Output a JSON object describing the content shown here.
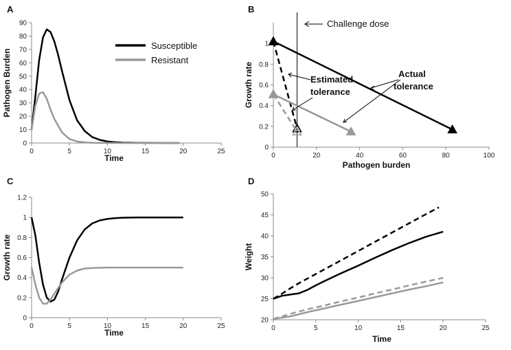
{
  "colors": {
    "susceptible": "#000000",
    "resistant": "#999999",
    "axis": "#888888"
  },
  "chart_data": [
    {
      "panel": "A",
      "type": "line",
      "title": "",
      "xlabel": "Time",
      "ylabel": "Pathogen Burden",
      "xlim": [
        0,
        25
      ],
      "ylim": [
        0,
        90
      ],
      "xticks": [
        0,
        5,
        10,
        15,
        20,
        25
      ],
      "yticks": [
        0,
        10,
        20,
        30,
        40,
        50,
        60,
        70,
        80,
        90
      ],
      "legend": [
        "Susceptible",
        "Resistant"
      ],
      "series": [
        {
          "name": "Susceptible",
          "style": "solid-black",
          "x": [
            0,
            0.5,
            1,
            1.5,
            2,
            2.5,
            3,
            3.5,
            4,
            5,
            6,
            7,
            8,
            9,
            10,
            11,
            12,
            14,
            16,
            19.5
          ],
          "y": [
            10,
            35,
            62,
            79,
            85,
            83,
            76,
            66,
            54,
            32,
            17,
            9,
            4.5,
            2.3,
            1.2,
            0.6,
            0.3,
            0.1,
            0.05,
            0
          ]
        },
        {
          "name": "Resistant",
          "style": "solid-grey",
          "x": [
            0,
            0.5,
            1,
            1.5,
            2,
            2.5,
            3,
            4,
            5,
            6,
            7,
            8,
            10,
            12,
            19.5
          ],
          "y": [
            10,
            28,
            37,
            38,
            33,
            25,
            18,
            8,
            3,
            1.2,
            0.5,
            0.2,
            0.05,
            0,
            0
          ]
        }
      ]
    },
    {
      "panel": "B",
      "type": "line",
      "title": "",
      "xlabel": "Pathogen burden",
      "ylabel": "Growth rate",
      "xlim": [
        0,
        100
      ],
      "ylim": [
        0,
        1.2
      ],
      "xticks": [
        0,
        20,
        40,
        60,
        80,
        100
      ],
      "yticks": [
        0,
        0.2,
        0.4,
        0.6,
        0.8,
        1
      ],
      "vline": {
        "x": 11,
        "label": "Challenge dose"
      },
      "annotations": [
        {
          "text_lines": [
            "Estimated",
            "tolerance"
          ]
        },
        {
          "text_lines": [
            "Actual",
            "tolerance"
          ]
        }
      ],
      "series": [
        {
          "name": "Susceptible actual tolerance",
          "style": "solid-black",
          "x": [
            0,
            83
          ],
          "y": [
            1.02,
            0.17
          ]
        },
        {
          "name": "Susceptible estimated tolerance",
          "style": "dashed-black",
          "x": [
            0,
            11
          ],
          "y": [
            1.02,
            0.18
          ]
        },
        {
          "name": "Resistant actual tolerance",
          "style": "solid-grey",
          "x": [
            0,
            36
          ],
          "y": [
            0.51,
            0.15
          ]
        },
        {
          "name": "Resistant estimated tolerance",
          "style": "dashed-grey",
          "x": [
            0,
            11
          ],
          "y": [
            0.51,
            0.15
          ]
        }
      ]
    },
    {
      "panel": "C",
      "type": "line",
      "title": "",
      "xlabel": "Time",
      "ylabel": "Growth rate",
      "xlim": [
        0,
        25
      ],
      "ylim": [
        0,
        1.2
      ],
      "xticks": [
        0,
        5,
        10,
        15,
        20,
        25
      ],
      "yticks": [
        0,
        0.2,
        0.4,
        0.6,
        0.8,
        1,
        1.2
      ],
      "series": [
        {
          "name": "Susceptible",
          "style": "solid-black",
          "x": [
            0,
            0.5,
            1,
            1.5,
            2,
            2.5,
            3,
            3.5,
            4,
            5,
            6,
            7,
            8,
            9,
            10,
            11,
            12,
            14,
            16,
            20
          ],
          "y": [
            1,
            0.82,
            0.55,
            0.33,
            0.2,
            0.16,
            0.18,
            0.26,
            0.38,
            0.6,
            0.77,
            0.88,
            0.94,
            0.97,
            0.985,
            0.993,
            0.997,
            1,
            1,
            1
          ]
        },
        {
          "name": "Resistant",
          "style": "solid-grey",
          "x": [
            0,
            0.5,
            1,
            1.5,
            2,
            2.5,
            3,
            4,
            5,
            6,
            7,
            8,
            9,
            10,
            12,
            14,
            20
          ],
          "y": [
            0.5,
            0.33,
            0.2,
            0.14,
            0.14,
            0.18,
            0.24,
            0.35,
            0.43,
            0.47,
            0.49,
            0.495,
            0.498,
            0.5,
            0.5,
            0.5,
            0.5
          ]
        }
      ]
    },
    {
      "panel": "D",
      "type": "line",
      "title": "",
      "xlabel": "Time",
      "ylabel": "Weight",
      "xlim": [
        0,
        25
      ],
      "ylim": [
        20,
        50
      ],
      "xticks": [
        0,
        5,
        10,
        15,
        20,
        25
      ],
      "yticks": [
        20,
        25,
        30,
        35,
        40,
        45,
        50
      ],
      "series": [
        {
          "name": "Susceptible estimated",
          "style": "dashed-black",
          "x": [
            0,
            1,
            2,
            3,
            4,
            5,
            8,
            10,
            12,
            15,
            18,
            19.5
          ],
          "y": [
            25,
            26.2,
            27.5,
            28.7,
            29.8,
            30.9,
            34.2,
            36.4,
            38.6,
            41.9,
            45.2,
            46.8
          ]
        },
        {
          "name": "Susceptible actual",
          "style": "solid-black",
          "x": [
            0,
            1,
            2,
            3,
            4,
            5,
            6,
            8,
            10,
            12,
            14,
            16,
            18,
            20
          ],
          "y": [
            25,
            25.7,
            26,
            26.3,
            27.1,
            28.2,
            29.2,
            31.1,
            32.9,
            34.8,
            36.6,
            38.3,
            39.8,
            41
          ]
        },
        {
          "name": "Resistant estimated",
          "style": "dashed-grey",
          "x": [
            0,
            2,
            4,
            6,
            8,
            10,
            12,
            14,
            16,
            18,
            20
          ],
          "y": [
            20.2,
            21.4,
            22.5,
            23.4,
            24.4,
            25.3,
            26.3,
            27.2,
            28.2,
            29.1,
            30
          ]
        },
        {
          "name": "Resistant actual",
          "style": "solid-grey",
          "x": [
            0,
            2,
            4,
            6,
            8,
            10,
            12,
            14,
            16,
            18,
            20
          ],
          "y": [
            20.2,
            20.8,
            21.8,
            22.7,
            23.6,
            24.5,
            25.4,
            26.3,
            27.2,
            28,
            28.9
          ]
        }
      ]
    }
  ],
  "legend_labels": {
    "susceptible": "Susceptible",
    "resistant": "Resistant"
  }
}
